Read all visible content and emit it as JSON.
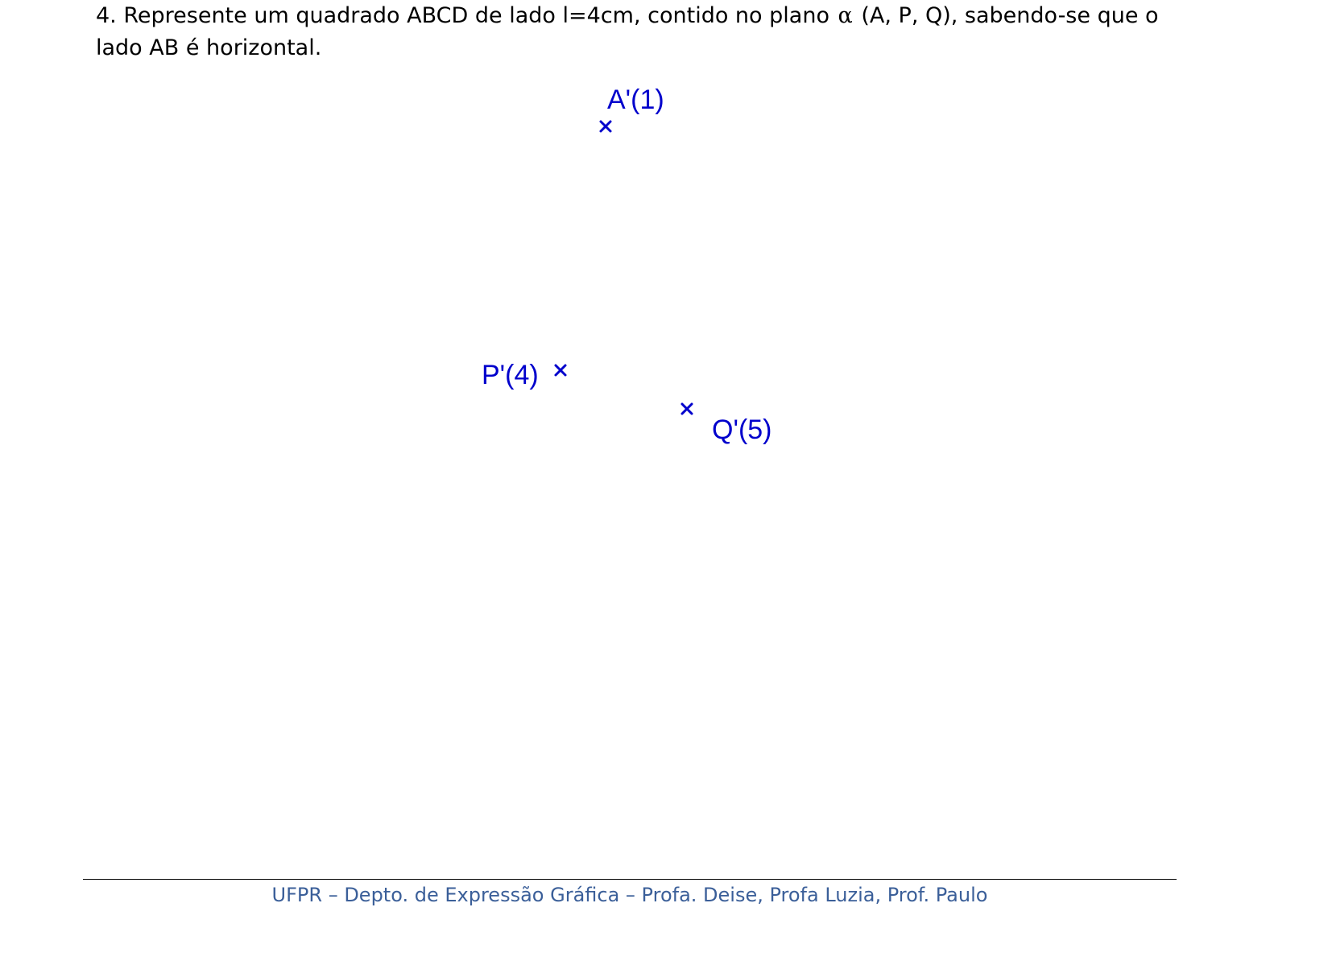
{
  "exercise": {
    "text_before_symbol": "4. Represente um quadrado ABCD de lado l=4cm, contido no plano ",
    "symbol": "α",
    "text_after_symbol": " (A, P, Q), sabendo-se que o lado AB é horizontal."
  },
  "points": [
    {
      "label": "A'(1)"
    },
    {
      "label": "P'(4)"
    },
    {
      "label": "Q'(5)"
    }
  ],
  "footer": {
    "text": "UFPR – Depto. de Expressão Gráfica – Profa. Deise, Profa Luzia, Prof. Paulo"
  },
  "colors": {
    "point_color": "#0000cc",
    "footer_color": "#3b5f99"
  }
}
